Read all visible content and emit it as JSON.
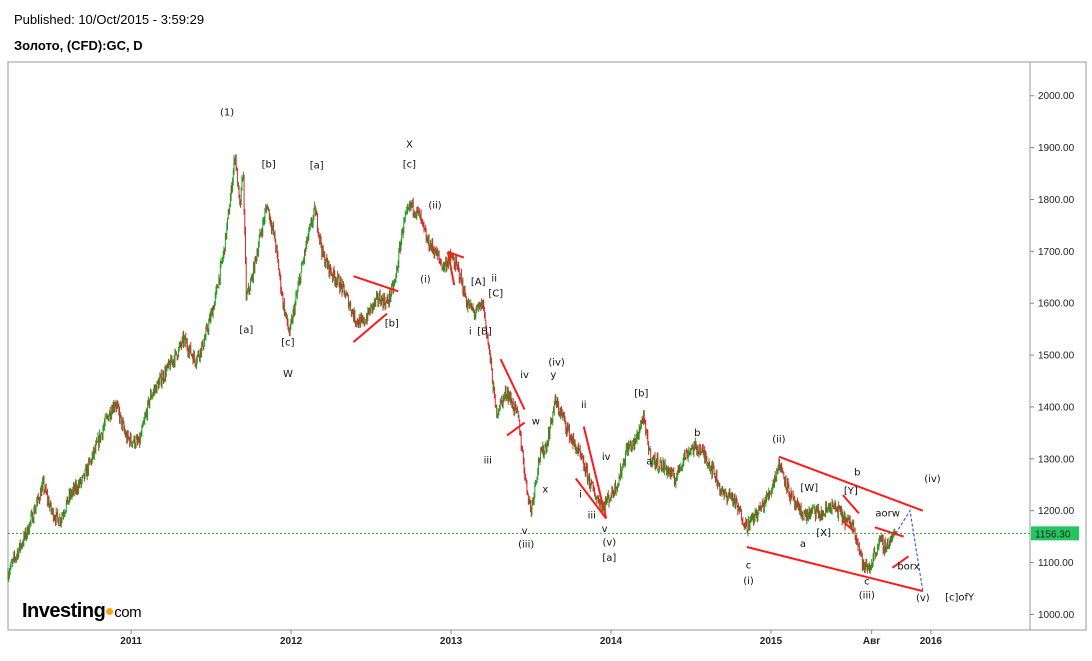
{
  "header": {
    "published": "Published: 10/Oct/2015 - 3:59:29",
    "title": "Золото, (CFD):GC, D"
  },
  "logo": {
    "brand": "Investing",
    "domain": "com"
  },
  "colors": {
    "up": "#1e9e1e",
    "down": "#d4282a",
    "annotation": "#ff1a1a",
    "projection": "#4b5bd8",
    "current_line": "#2ca02c",
    "price_badge": "#22c55e"
  },
  "chart_data": {
    "type": "line",
    "title": "Золото, (CFD):GC, D",
    "ylim": [
      970,
      2065
    ],
    "y_ticks": [
      1000,
      1100,
      1200,
      1300,
      1400,
      1500,
      1600,
      1700,
      1800,
      1900,
      2000
    ],
    "y_tick_labels": [
      "1000.00",
      "1100.00",
      "1200.00",
      "1300.00",
      "1400.00",
      "1500.00",
      "1600.00",
      "1700.00",
      "1800.00",
      "1900.00",
      "2000.00"
    ],
    "x_range": [
      2010.23,
      2016.62
    ],
    "x_ticks": [
      {
        "x": 2011.0,
        "label": "2011"
      },
      {
        "x": 2012.0,
        "label": "2012"
      },
      {
        "x": 2013.0,
        "label": "2013"
      },
      {
        "x": 2014.0,
        "label": "2014"
      },
      {
        "x": 2015.0,
        "label": "2015"
      },
      {
        "x": 2015.63,
        "label": "Авг"
      },
      {
        "x": 2016.0,
        "label": "2016"
      }
    ],
    "last_price": 1156.3,
    "last_price_label": "1156.30",
    "price_path": [
      [
        2010.23,
        1080
      ],
      [
        2010.35,
        1160
      ],
      [
        2010.45,
        1250
      ],
      [
        2010.5,
        1200
      ],
      [
        2010.55,
        1180
      ],
      [
        2010.62,
        1230
      ],
      [
        2010.7,
        1260
      ],
      [
        2010.78,
        1320
      ],
      [
        2010.85,
        1380
      ],
      [
        2010.9,
        1410
      ],
      [
        2010.97,
        1340
      ],
      [
        2011.05,
        1330
      ],
      [
        2011.12,
        1420
      ],
      [
        2011.2,
        1460
      ],
      [
        2011.28,
        1500
      ],
      [
        2011.33,
        1530
      ],
      [
        2011.4,
        1490
      ],
      [
        2011.45,
        1520
      ],
      [
        2011.52,
        1600
      ],
      [
        2011.58,
        1700
      ],
      [
        2011.62,
        1800
      ],
      [
        2011.65,
        1890
      ],
      [
        2011.68,
        1780
      ],
      [
        2011.7,
        1860
      ],
      [
        2011.72,
        1610
      ],
      [
        2011.75,
        1640
      ],
      [
        2011.8,
        1720
      ],
      [
        2011.85,
        1790
      ],
      [
        2011.9,
        1720
      ],
      [
        2011.95,
        1600
      ],
      [
        2011.99,
        1540
      ],
      [
        2012.05,
        1640
      ],
      [
        2012.1,
        1720
      ],
      [
        2012.15,
        1780
      ],
      [
        2012.2,
        1690
      ],
      [
        2012.25,
        1660
      ],
      [
        2012.3,
        1640
      ],
      [
        2012.35,
        1610
      ],
      [
        2012.4,
        1570
      ],
      [
        2012.45,
        1560
      ],
      [
        2012.5,
        1590
      ],
      [
        2012.55,
        1610
      ],
      [
        2012.6,
        1600
      ],
      [
        2012.65,
        1640
      ],
      [
        2012.7,
        1750
      ],
      [
        2012.75,
        1790
      ],
      [
        2012.8,
        1770
      ],
      [
        2012.85,
        1720
      ],
      [
        2012.9,
        1700
      ],
      [
        2012.95,
        1670
      ],
      [
        2013.0,
        1690
      ],
      [
        2013.05,
        1660
      ],
      [
        2013.1,
        1600
      ],
      [
        2013.15,
        1580
      ],
      [
        2013.2,
        1600
      ],
      [
        2013.25,
        1480
      ],
      [
        2013.28,
        1390
      ],
      [
        2013.3,
        1400
      ],
      [
        2013.35,
        1430
      ],
      [
        2013.42,
        1380
      ],
      [
        2013.47,
        1250
      ],
      [
        2013.5,
        1200
      ],
      [
        2013.55,
        1300
      ],
      [
        2013.6,
        1330
      ],
      [
        2013.65,
        1410
      ],
      [
        2013.7,
        1380
      ],
      [
        2013.75,
        1340
      ],
      [
        2013.8,
        1310
      ],
      [
        2013.85,
        1270
      ],
      [
        2013.9,
        1230
      ],
      [
        2013.95,
        1210
      ],
      [
        2014.0,
        1230
      ],
      [
        2014.05,
        1260
      ],
      [
        2014.1,
        1320
      ],
      [
        2014.15,
        1330
      ],
      [
        2014.2,
        1380
      ],
      [
        2014.25,
        1300
      ],
      [
        2014.3,
        1290
      ],
      [
        2014.35,
        1280
      ],
      [
        2014.4,
        1260
      ],
      [
        2014.45,
        1300
      ],
      [
        2014.5,
        1320
      ],
      [
        2014.55,
        1320
      ],
      [
        2014.6,
        1300
      ],
      [
        2014.65,
        1270
      ],
      [
        2014.7,
        1230
      ],
      [
        2014.75,
        1230
      ],
      [
        2014.8,
        1200
      ],
      [
        2014.85,
        1170
      ],
      [
        2014.9,
        1190
      ],
      [
        2014.95,
        1210
      ],
      [
        2015.0,
        1240
      ],
      [
        2015.05,
        1290
      ],
      [
        2015.08,
        1270
      ],
      [
        2015.12,
        1230
      ],
      [
        2015.17,
        1200
      ],
      [
        2015.22,
        1190
      ],
      [
        2015.27,
        1200
      ],
      [
        2015.32,
        1190
      ],
      [
        2015.37,
        1210
      ],
      [
        2015.42,
        1200
      ],
      [
        2015.47,
        1180
      ],
      [
        2015.52,
        1170
      ],
      [
        2015.55,
        1130
      ],
      [
        2015.58,
        1090
      ],
      [
        2015.62,
        1090
      ],
      [
        2015.65,
        1120
      ],
      [
        2015.68,
        1140
      ],
      [
        2015.72,
        1130
      ],
      [
        2015.76,
        1150
      ],
      [
        2015.78,
        1156
      ]
    ],
    "annotations": [
      {
        "text": "(1)",
        "x": 2011.6,
        "y": 1962
      },
      {
        "text": "[b]",
        "x": 2011.86,
        "y": 1862
      },
      {
        "text": "[a]",
        "x": 2012.16,
        "y": 1860
      },
      {
        "text": "X",
        "x": 2012.74,
        "y": 1900
      },
      {
        "text": "[c]",
        "x": 2012.74,
        "y": 1862
      },
      {
        "text": "(ii)",
        "x": 2012.9,
        "y": 1783
      },
      {
        "text": "(i)",
        "x": 2012.84,
        "y": 1640
      },
      {
        "text": "[a]",
        "x": 2011.72,
        "y": 1543
      },
      {
        "text": "[c]",
        "x": 2011.98,
        "y": 1518
      },
      {
        "text": "W",
        "x": 2011.98,
        "y": 1458
      },
      {
        "text": "[b]",
        "x": 2012.63,
        "y": 1555
      },
      {
        "text": "ii",
        "x": 2013.27,
        "y": 1642
      },
      {
        "text": "[A]",
        "x": 2013.17,
        "y": 1635
      },
      {
        "text": "[C]",
        "x": 2013.28,
        "y": 1613
      },
      {
        "text": "i",
        "x": 2013.12,
        "y": 1540
      },
      {
        "text": "[B]",
        "x": 2013.21,
        "y": 1540
      },
      {
        "text": "iv",
        "x": 2013.46,
        "y": 1456
      },
      {
        "text": "(iv)",
        "x": 2013.66,
        "y": 1480
      },
      {
        "text": "y",
        "x": 2013.64,
        "y": 1456
      },
      {
        "text": "w",
        "x": 2013.53,
        "y": 1366
      },
      {
        "text": "iii",
        "x": 2013.23,
        "y": 1291
      },
      {
        "text": "x",
        "x": 2013.59,
        "y": 1235
      },
      {
        "text": "ii",
        "x": 2013.83,
        "y": 1398
      },
      {
        "text": "iv",
        "x": 2013.97,
        "y": 1298
      },
      {
        "text": "i",
        "x": 2013.81,
        "y": 1225
      },
      {
        "text": "iii",
        "x": 2013.88,
        "y": 1185
      },
      {
        "text": "v",
        "x": 2013.96,
        "y": 1159
      },
      {
        "text": "v",
        "x": 2013.46,
        "y": 1155
      },
      {
        "text": "(iii)",
        "x": 2013.47,
        "y": 1129
      },
      {
        "text": "(v)",
        "x": 2013.99,
        "y": 1133
      },
      {
        "text": "[a]",
        "x": 2013.99,
        "y": 1103
      },
      {
        "text": "[b]",
        "x": 2014.19,
        "y": 1420
      },
      {
        "text": "a",
        "x": 2014.24,
        "y": 1289
      },
      {
        "text": "b",
        "x": 2014.54,
        "y": 1344
      },
      {
        "text": "(ii)",
        "x": 2015.05,
        "y": 1331
      },
      {
        "text": "c",
        "x": 2014.86,
        "y": 1089
      },
      {
        "text": "(i)",
        "x": 2014.86,
        "y": 1059
      },
      {
        "text": "[W]",
        "x": 2015.24,
        "y": 1238
      },
      {
        "text": "a",
        "x": 2015.2,
        "y": 1130
      },
      {
        "text": "[X]",
        "x": 2015.33,
        "y": 1151
      },
      {
        "text": "[Y]",
        "x": 2015.5,
        "y": 1232
      },
      {
        "text": "b",
        "x": 2015.54,
        "y": 1268
      },
      {
        "text": "aorw",
        "x": 2015.73,
        "y": 1189
      },
      {
        "text": "(iv)",
        "x": 2016.01,
        "y": 1255
      },
      {
        "text": "borx",
        "x": 2015.86,
        "y": 1087
      },
      {
        "text": "c",
        "x": 2015.6,
        "y": 1058
      },
      {
        "text": "(iii)",
        "x": 2015.6,
        "y": 1031
      },
      {
        "text": "(v)",
        "x": 2015.95,
        "y": 1026
      },
      {
        "text": "[c]ofY",
        "x": 2016.18,
        "y": 1027
      }
    ],
    "red_lines": [
      [
        [
          2012.39,
          1652
        ],
        [
          2012.67,
          1623
        ]
      ],
      [
        [
          2012.39,
          1525
        ],
        [
          2012.6,
          1580
        ]
      ],
      [
        [
          2012.98,
          1699
        ],
        [
          2013.08,
          1688
        ]
      ],
      [
        [
          2012.98,
          1699
        ],
        [
          2013.02,
          1635
        ]
      ],
      [
        [
          2013.31,
          1492
        ],
        [
          2013.46,
          1395
        ]
      ],
      [
        [
          2013.35,
          1345
        ],
        [
          2013.46,
          1370
        ]
      ],
      [
        [
          2013.83,
          1362
        ],
        [
          2013.97,
          1185
        ]
      ],
      [
        [
          2013.78,
          1262
        ],
        [
          2013.97,
          1185
        ]
      ],
      [
        [
          2015.05,
          1304
        ],
        [
          2015.95,
          1200
        ]
      ],
      [
        [
          2014.85,
          1130
        ],
        [
          2015.95,
          1045
        ]
      ],
      [
        [
          2015.65,
          1168
        ],
        [
          2015.83,
          1150
        ]
      ],
      [
        [
          2015.76,
          1090
        ],
        [
          2015.86,
          1112
        ]
      ],
      [
        [
          2015.45,
          1230
        ],
        [
          2015.55,
          1195
        ]
      ],
      [
        [
          2015.45,
          1180
        ],
        [
          2015.52,
          1160
        ]
      ]
    ],
    "projection": [
      [
        2015.78,
        1156
      ],
      [
        2015.87,
        1200
      ],
      [
        2015.95,
        1045
      ]
    ]
  }
}
